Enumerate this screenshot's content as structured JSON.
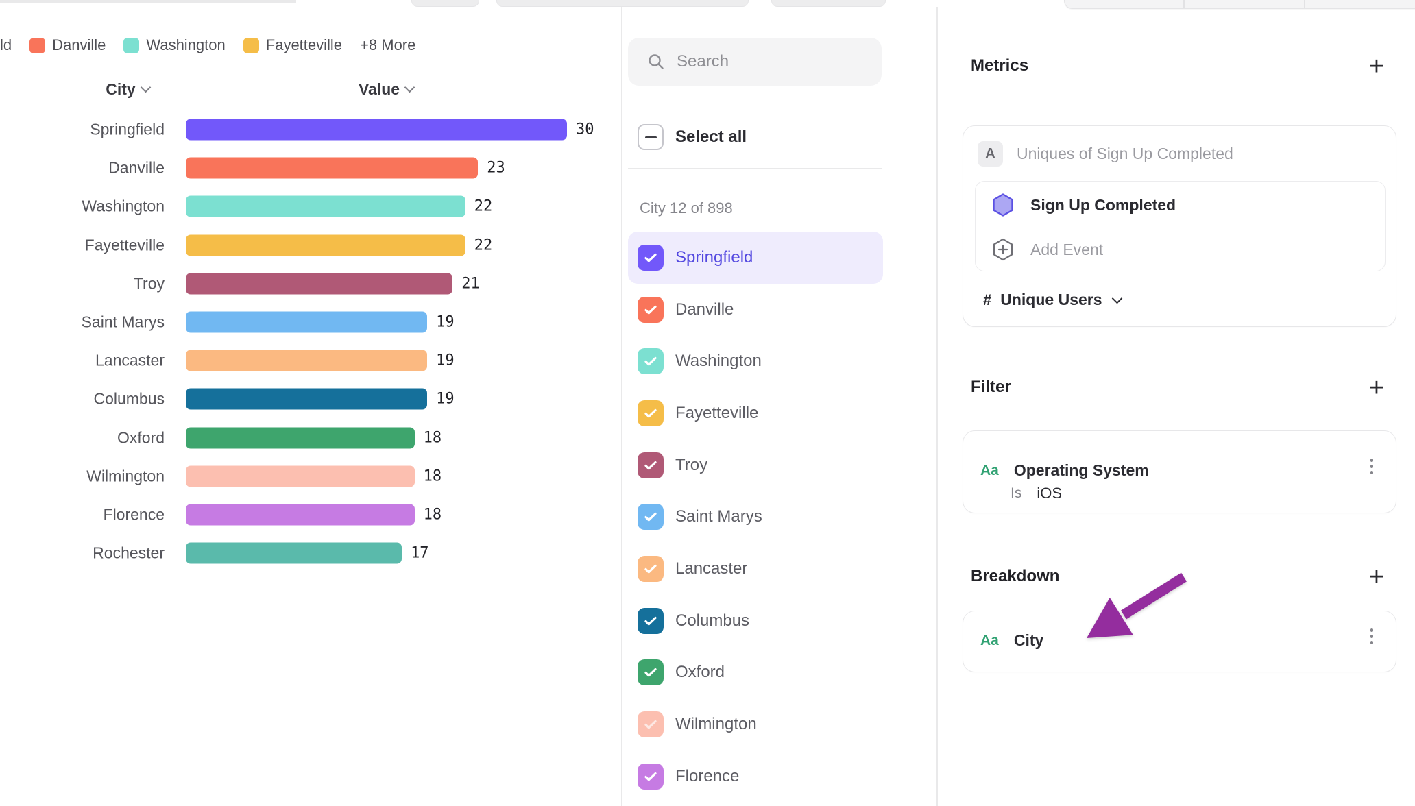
{
  "legend": {
    "clipped_label": "ld",
    "items": [
      {
        "label": "Danville",
        "color": "#F9745A"
      },
      {
        "label": "Washington",
        "color": "#7CE0D1"
      },
      {
        "label": "Fayetteville",
        "color": "#F5BD48"
      }
    ],
    "more_label": "+8 More"
  },
  "chart_data": {
    "type": "bar",
    "orientation": "horizontal",
    "column_headers": {
      "category": "City",
      "value": "Value"
    },
    "categories": [
      "Springfield",
      "Danville",
      "Washington",
      "Fayetteville",
      "Troy",
      "Saint Marys",
      "Lancaster",
      "Columbus",
      "Oxford",
      "Wilmington",
      "Florence",
      "Rochester"
    ],
    "values": [
      30,
      23,
      22,
      22,
      21,
      19,
      19,
      19,
      18,
      18,
      18,
      17
    ],
    "colors": [
      "#7258FA",
      "#F9745A",
      "#7CE0D1",
      "#F5BD48",
      "#B05976",
      "#71B8F2",
      "#FBB981",
      "#15709B",
      "#3EA56D",
      "#FCBFB0",
      "#C67BE3",
      "#5ABAAB"
    ],
    "xmax": 30,
    "value_labels_shown": true,
    "sorted": "descending",
    "grid": false,
    "legend_position": "top"
  },
  "selector_panel": {
    "search_placeholder": "Search",
    "select_all_label": "Select all",
    "select_all_state": "indeterminate",
    "count_label": "City 12 of 898",
    "items": [
      {
        "label": "Springfield",
        "color": "#7258FA",
        "checked": true,
        "highlighted": true
      },
      {
        "label": "Danville",
        "color": "#F9745A",
        "checked": true
      },
      {
        "label": "Washington",
        "color": "#7CE0D1",
        "checked": true
      },
      {
        "label": "Fayetteville",
        "color": "#F5BD48",
        "checked": true
      },
      {
        "label": "Troy",
        "color": "#B05976",
        "checked": true
      },
      {
        "label": "Saint Marys",
        "color": "#71B8F2",
        "checked": true
      },
      {
        "label": "Lancaster",
        "color": "#FBB981",
        "checked": true
      },
      {
        "label": "Columbus",
        "color": "#15709B",
        "checked": true
      },
      {
        "label": "Oxford",
        "color": "#3EA56D",
        "checked": true
      },
      {
        "label": "Wilmington",
        "color": "#FCBFB0",
        "checked": true,
        "check_faded": true
      },
      {
        "label": "Florence",
        "color": "#C67BE3",
        "checked": true
      }
    ]
  },
  "metrics": {
    "title": "Metrics",
    "row_letter": "A",
    "row_label": "Uniques of Sign Up Completed",
    "event_name": "Sign Up Completed",
    "add_event_label": "Add Event",
    "measure_symbol": "#",
    "measure_label": "Unique Users"
  },
  "filter": {
    "title": "Filter",
    "type_badge": "Aa",
    "property": "Operating System",
    "operator": "Is",
    "value": "iOS"
  },
  "breakdown": {
    "title": "Breakdown",
    "type_badge": "Aa",
    "property": "City"
  },
  "annotation_arrow": {
    "color": "#942D9E"
  },
  "ui_colors": {
    "accent_purple": "#7258FA",
    "highlight_bg": "#EFECFD",
    "badge_green": "#31A273",
    "text_dark": "#2B2B31",
    "text_gray": "#9A9AA0",
    "border": "#E7E7E9"
  }
}
